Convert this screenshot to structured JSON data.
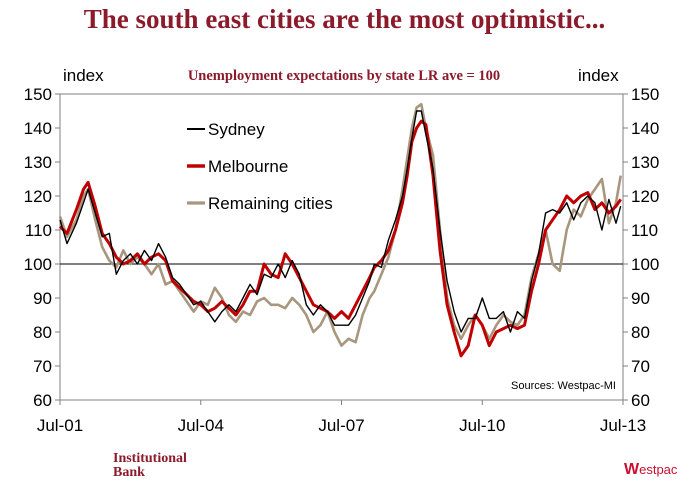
{
  "page_title": "The south east cities are the most optimistic...",
  "footer": {
    "brand_line1": "Institutional",
    "brand_line2": "Bank",
    "logo_w": "W",
    "logo_rest": "estpac"
  },
  "chart_data": {
    "type": "line",
    "title": "Unemployment expectations by state LR ave = 100",
    "ylabel_left": "index",
    "ylabel_right": "index",
    "source": "Sources: Westpac-MI",
    "ylim": [
      60,
      150
    ],
    "yticks": [
      60,
      70,
      80,
      90,
      100,
      110,
      120,
      130,
      140,
      150
    ],
    "xlim": [
      2001.5,
      2013.5
    ],
    "xticks": [
      {
        "value": 2001.5,
        "label": "Jul-01"
      },
      {
        "value": 2004.5,
        "label": "Jul-04"
      },
      {
        "value": 2007.5,
        "label": "Jul-07"
      },
      {
        "value": 2010.5,
        "label": "Jul-10"
      },
      {
        "value": 2013.5,
        "label": "Jul-13"
      }
    ],
    "reference_line": 100,
    "legend_position": "upper-left",
    "series": [
      {
        "name": "Sydney",
        "color": "#000000",
        "points": [
          [
            2001.5,
            113
          ],
          [
            2001.65,
            106
          ],
          [
            2001.85,
            112
          ],
          [
            2002.0,
            118
          ],
          [
            2002.1,
            122
          ],
          [
            2002.25,
            115
          ],
          [
            2002.4,
            108
          ],
          [
            2002.55,
            109
          ],
          [
            2002.7,
            97
          ],
          [
            2002.85,
            101
          ],
          [
            2003.0,
            103
          ],
          [
            2003.15,
            100
          ],
          [
            2003.3,
            104
          ],
          [
            2003.45,
            101
          ],
          [
            2003.6,
            106
          ],
          [
            2003.75,
            102
          ],
          [
            2003.9,
            96
          ],
          [
            2004.05,
            94
          ],
          [
            2004.2,
            91
          ],
          [
            2004.35,
            88
          ],
          [
            2004.5,
            89
          ],
          [
            2004.65,
            86
          ],
          [
            2004.8,
            83
          ],
          [
            2004.95,
            86
          ],
          [
            2005.1,
            88
          ],
          [
            2005.25,
            86
          ],
          [
            2005.4,
            90
          ],
          [
            2005.55,
            94
          ],
          [
            2005.7,
            91
          ],
          [
            2005.85,
            97
          ],
          [
            2006.0,
            96
          ],
          [
            2006.15,
            100
          ],
          [
            2006.3,
            96
          ],
          [
            2006.45,
            101
          ],
          [
            2006.6,
            97
          ],
          [
            2006.75,
            88
          ],
          [
            2006.9,
            85
          ],
          [
            2007.05,
            88
          ],
          [
            2007.2,
            86
          ],
          [
            2007.35,
            82
          ],
          [
            2007.5,
            82
          ],
          [
            2007.65,
            82
          ],
          [
            2007.8,
            85
          ],
          [
            2007.95,
            90
          ],
          [
            2008.1,
            95
          ],
          [
            2008.2,
            100
          ],
          [
            2008.35,
            99
          ],
          [
            2008.5,
            107
          ],
          [
            2008.65,
            113
          ],
          [
            2008.8,
            120
          ],
          [
            2008.9,
            128
          ],
          [
            2009.0,
            137
          ],
          [
            2009.1,
            145
          ],
          [
            2009.2,
            145
          ],
          [
            2009.3,
            138
          ],
          [
            2009.45,
            128
          ],
          [
            2009.6,
            110
          ],
          [
            2009.75,
            95
          ],
          [
            2009.9,
            86
          ],
          [
            2010.05,
            80
          ],
          [
            2010.2,
            84
          ],
          [
            2010.35,
            84
          ],
          [
            2010.5,
            90
          ],
          [
            2010.65,
            84
          ],
          [
            2010.8,
            84
          ],
          [
            2010.95,
            86
          ],
          [
            2011.1,
            80
          ],
          [
            2011.25,
            86
          ],
          [
            2011.4,
            84
          ],
          [
            2011.55,
            95
          ],
          [
            2011.7,
            103
          ],
          [
            2011.85,
            115
          ],
          [
            2012.0,
            116
          ],
          [
            2012.15,
            115
          ],
          [
            2012.3,
            118
          ],
          [
            2012.45,
            113
          ],
          [
            2012.6,
            118
          ],
          [
            2012.75,
            120
          ],
          [
            2012.9,
            118
          ],
          [
            2013.05,
            110
          ],
          [
            2013.2,
            119
          ],
          [
            2013.35,
            112
          ],
          [
            2013.45,
            117
          ]
        ]
      },
      {
        "name": "Melbourne",
        "color": "#c00000",
        "points": [
          [
            2001.5,
            111
          ],
          [
            2001.65,
            109
          ],
          [
            2001.85,
            116
          ],
          [
            2002.0,
            122
          ],
          [
            2002.1,
            124
          ],
          [
            2002.25,
            117
          ],
          [
            2002.4,
            109
          ],
          [
            2002.55,
            106
          ],
          [
            2002.7,
            102
          ],
          [
            2002.85,
            100
          ],
          [
            2003.0,
            101
          ],
          [
            2003.15,
            103
          ],
          [
            2003.3,
            100
          ],
          [
            2003.45,
            102
          ],
          [
            2003.6,
            103
          ],
          [
            2003.75,
            101
          ],
          [
            2003.9,
            95
          ],
          [
            2004.05,
            93
          ],
          [
            2004.2,
            91
          ],
          [
            2004.35,
            89
          ],
          [
            2004.5,
            88
          ],
          [
            2004.65,
            86
          ],
          [
            2004.8,
            87
          ],
          [
            2004.95,
            89
          ],
          [
            2005.1,
            87
          ],
          [
            2005.25,
            85
          ],
          [
            2005.4,
            88
          ],
          [
            2005.55,
            92
          ],
          [
            2005.7,
            92
          ],
          [
            2005.85,
            100
          ],
          [
            2006.0,
            97
          ],
          [
            2006.15,
            96
          ],
          [
            2006.3,
            103
          ],
          [
            2006.45,
            100
          ],
          [
            2006.6,
            96
          ],
          [
            2006.75,
            92
          ],
          [
            2006.9,
            88
          ],
          [
            2007.05,
            87
          ],
          [
            2007.2,
            86
          ],
          [
            2007.35,
            84
          ],
          [
            2007.5,
            86
          ],
          [
            2007.65,
            84
          ],
          [
            2007.8,
            88
          ],
          [
            2007.95,
            92
          ],
          [
            2008.1,
            96
          ],
          [
            2008.2,
            99
          ],
          [
            2008.35,
            101
          ],
          [
            2008.5,
            104
          ],
          [
            2008.65,
            110
          ],
          [
            2008.8,
            118
          ],
          [
            2008.9,
            126
          ],
          [
            2009.0,
            136
          ],
          [
            2009.1,
            140
          ],
          [
            2009.2,
            142
          ],
          [
            2009.3,
            141
          ],
          [
            2009.45,
            126
          ],
          [
            2009.6,
            104
          ],
          [
            2009.75,
            88
          ],
          [
            2009.9,
            80
          ],
          [
            2010.05,
            73
          ],
          [
            2010.2,
            76
          ],
          [
            2010.35,
            85
          ],
          [
            2010.5,
            82
          ],
          [
            2010.65,
            76
          ],
          [
            2010.8,
            80
          ],
          [
            2010.95,
            81
          ],
          [
            2011.1,
            82
          ],
          [
            2011.25,
            81
          ],
          [
            2011.4,
            82
          ],
          [
            2011.55,
            92
          ],
          [
            2011.7,
            100
          ],
          [
            2011.85,
            110
          ],
          [
            2012.0,
            113
          ],
          [
            2012.15,
            116
          ],
          [
            2012.3,
            120
          ],
          [
            2012.45,
            118
          ],
          [
            2012.6,
            120
          ],
          [
            2012.75,
            121
          ],
          [
            2012.9,
            116
          ],
          [
            2013.05,
            118
          ],
          [
            2013.2,
            115
          ],
          [
            2013.35,
            117
          ],
          [
            2013.45,
            119
          ]
        ]
      },
      {
        "name": "Remaining cities",
        "color": "#a8967e",
        "points": [
          [
            2001.5,
            114
          ],
          [
            2001.65,
            108
          ],
          [
            2001.85,
            113
          ],
          [
            2002.0,
            120
          ],
          [
            2002.1,
            122
          ],
          [
            2002.25,
            113
          ],
          [
            2002.4,
            105
          ],
          [
            2002.55,
            101
          ],
          [
            2002.7,
            99
          ],
          [
            2002.85,
            104
          ],
          [
            2003.0,
            100
          ],
          [
            2003.15,
            102
          ],
          [
            2003.3,
            100
          ],
          [
            2003.45,
            97
          ],
          [
            2003.6,
            100
          ],
          [
            2003.75,
            94
          ],
          [
            2003.9,
            95
          ],
          [
            2004.05,
            92
          ],
          [
            2004.2,
            89
          ],
          [
            2004.35,
            86
          ],
          [
            2004.5,
            89
          ],
          [
            2004.65,
            88
          ],
          [
            2004.8,
            93
          ],
          [
            2004.95,
            90
          ],
          [
            2005.1,
            85
          ],
          [
            2005.25,
            83
          ],
          [
            2005.4,
            86
          ],
          [
            2005.55,
            85
          ],
          [
            2005.7,
            89
          ],
          [
            2005.85,
            90
          ],
          [
            2006.0,
            88
          ],
          [
            2006.15,
            88
          ],
          [
            2006.3,
            87
          ],
          [
            2006.45,
            90
          ],
          [
            2006.6,
            88
          ],
          [
            2006.75,
            85
          ],
          [
            2006.9,
            80
          ],
          [
            2007.05,
            82
          ],
          [
            2007.2,
            86
          ],
          [
            2007.35,
            80
          ],
          [
            2007.5,
            76
          ],
          [
            2007.65,
            78
          ],
          [
            2007.8,
            77
          ],
          [
            2007.95,
            85
          ],
          [
            2008.1,
            90
          ],
          [
            2008.2,
            92
          ],
          [
            2008.35,
            97
          ],
          [
            2008.5,
            102
          ],
          [
            2008.65,
            110
          ],
          [
            2008.8,
            122
          ],
          [
            2008.9,
            131
          ],
          [
            2009.0,
            140
          ],
          [
            2009.1,
            146
          ],
          [
            2009.2,
            147
          ],
          [
            2009.3,
            140
          ],
          [
            2009.45,
            132
          ],
          [
            2009.6,
            110
          ],
          [
            2009.75,
            90
          ],
          [
            2009.9,
            82
          ],
          [
            2010.05,
            78
          ],
          [
            2010.2,
            82
          ],
          [
            2010.35,
            85
          ],
          [
            2010.5,
            82
          ],
          [
            2010.65,
            78
          ],
          [
            2010.8,
            82
          ],
          [
            2010.95,
            85
          ],
          [
            2011.1,
            83
          ],
          [
            2011.25,
            82
          ],
          [
            2011.4,
            85
          ],
          [
            2011.55,
            96
          ],
          [
            2011.7,
            103
          ],
          [
            2011.85,
            110
          ],
          [
            2012.0,
            100
          ],
          [
            2012.15,
            98
          ],
          [
            2012.3,
            110
          ],
          [
            2012.45,
            116
          ],
          [
            2012.6,
            114
          ],
          [
            2012.75,
            119
          ],
          [
            2012.9,
            122
          ],
          [
            2013.05,
            125
          ],
          [
            2013.2,
            112
          ],
          [
            2013.35,
            118
          ],
          [
            2013.45,
            126
          ]
        ]
      }
    ]
  }
}
